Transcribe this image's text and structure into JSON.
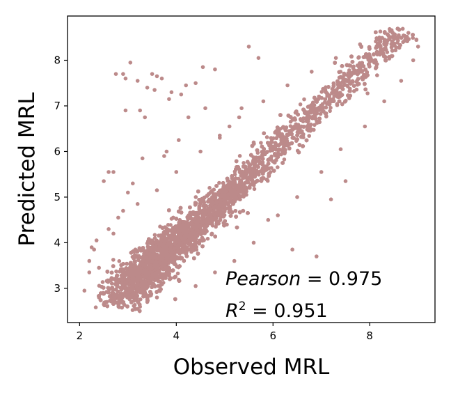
{
  "chart_data": {
    "type": "scatter",
    "xlabel": "Observed MRL",
    "ylabel": "Predicted MRL",
    "xlim": [
      1.75,
      9.35
    ],
    "ylim": [
      2.25,
      8.97
    ],
    "xticks": [
      2,
      4,
      6,
      8
    ],
    "yticks": [
      3,
      4,
      5,
      6,
      7,
      8
    ],
    "xtick_labels": [
      "2",
      "4",
      "6",
      "8"
    ],
    "ytick_labels": [
      "3",
      "4",
      "5",
      "6",
      "7",
      "8"
    ],
    "grid": false,
    "legend": "none",
    "color": "#bc8a8a",
    "point_density": "dense cloud of thousands of points along y ≈ x from about 2.3 to 8.9",
    "annotations": {
      "pearson_label": "Pearson",
      "pearson_value": " = 0.975",
      "r2_label": "R",
      "r2_exponent": "2",
      "r2_value": " = 0.951"
    },
    "points": [
      [
        2.1,
        2.95
      ],
      [
        2.2,
        3.6
      ],
      [
        2.3,
        3.85
      ],
      [
        2.4,
        3.45
      ],
      [
        2.5,
        5.35
      ],
      [
        2.6,
        5.55
      ],
      [
        2.7,
        5.55
      ],
      [
        2.7,
        4.2
      ],
      [
        2.8,
        4.55
      ],
      [
        2.75,
        7.7
      ],
      [
        2.9,
        7.7
      ],
      [
        2.95,
        7.6
      ],
      [
        2.95,
        6.9
      ],
      [
        3.0,
        5.1
      ],
      [
        3.05,
        7.95
      ],
      [
        3.1,
        5.3
      ],
      [
        3.2,
        7.55
      ],
      [
        3.25,
        6.9
      ],
      [
        3.3,
        5.85
      ],
      [
        3.35,
        6.75
      ],
      [
        3.4,
        7.4
      ],
      [
        3.5,
        7.7
      ],
      [
        3.55,
        7.35
      ],
      [
        3.6,
        7.65
      ],
      [
        3.7,
        7.6
      ],
      [
        3.75,
        5.9
      ],
      [
        3.8,
        6.0
      ],
      [
        3.85,
        7.15
      ],
      [
        3.9,
        7.3
      ],
      [
        4.05,
        6.25
      ],
      [
        4.1,
        7.25
      ],
      [
        4.2,
        7.45
      ],
      [
        4.25,
        6.75
      ],
      [
        4.4,
        7.5
      ],
      [
        4.55,
        7.85
      ],
      [
        4.6,
        6.95
      ],
      [
        4.8,
        7.8
      ],
      [
        4.9,
        6.3
      ],
      [
        5.1,
        6.55
      ],
      [
        5.35,
        6.95
      ],
      [
        5.5,
        8.3
      ],
      [
        5.7,
        8.05
      ],
      [
        5.6,
        6.2
      ],
      [
        5.9,
        4.5
      ],
      [
        5.95,
        5.55
      ],
      [
        6.4,
        3.85
      ],
      [
        6.9,
        3.7
      ],
      [
        7.2,
        4.95
      ],
      [
        7.5,
        5.35
      ],
      [
        2.2,
        3.35
      ],
      [
        2.25,
        3.9
      ],
      [
        2.35,
        4.05
      ],
      [
        2.4,
        2.8
      ],
      [
        2.5,
        2.65
      ],
      [
        3.2,
        2.55
      ],
      [
        3.4,
        2.7
      ],
      [
        3.6,
        2.8
      ],
      [
        4.4,
        3.05
      ],
      [
        4.8,
        3.35
      ],
      [
        5.2,
        3.6
      ],
      [
        5.6,
        4.0
      ],
      [
        6.1,
        4.6
      ],
      [
        6.5,
        5.0
      ],
      [
        7.0,
        5.55
      ],
      [
        7.4,
        6.05
      ],
      [
        7.9,
        6.55
      ],
      [
        8.3,
        7.1
      ],
      [
        8.65,
        7.55
      ],
      [
        8.9,
        8.0
      ],
      [
        9.0,
        8.3
      ],
      [
        8.8,
        8.6
      ],
      [
        8.6,
        8.55
      ],
      [
        8.2,
        8.5
      ],
      [
        7.8,
        8.35
      ],
      [
        7.3,
        8.05
      ],
      [
        6.8,
        7.75
      ],
      [
        6.3,
        7.45
      ],
      [
        5.8,
        7.1
      ],
      [
        5.3,
        6.75
      ],
      [
        4.9,
        6.35
      ],
      [
        4.5,
        6.0
      ],
      [
        4.0,
        5.55
      ],
      [
        3.6,
        5.15
      ],
      [
        3.2,
        4.85
      ],
      [
        2.9,
        4.7
      ],
      [
        2.6,
        4.3
      ]
    ]
  }
}
